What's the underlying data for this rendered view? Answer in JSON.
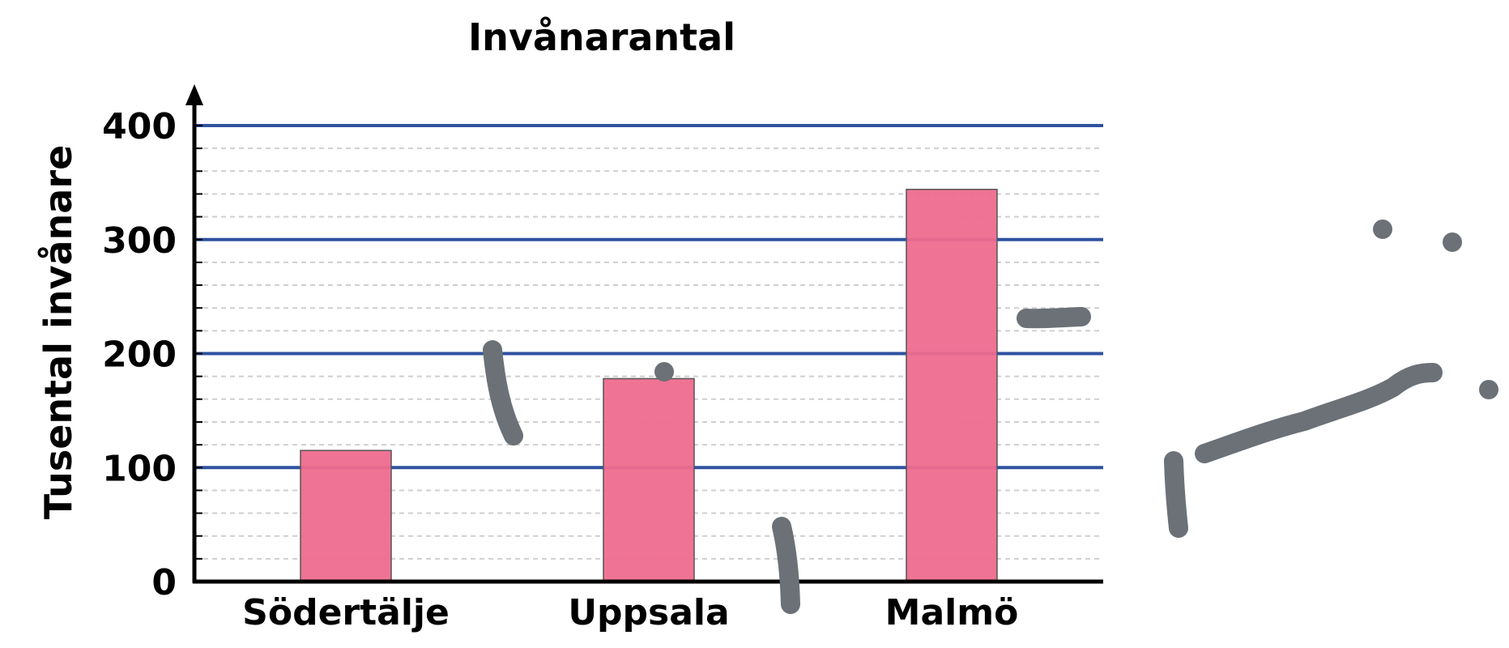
{
  "chart_data": {
    "type": "bar",
    "title": "Invånarantal",
    "ylabel": "Tusental invånare",
    "xlabel": "",
    "categories": [
      "Södertälje",
      "Uppsala",
      "Malmö"
    ],
    "values": [
      115,
      178,
      344
    ],
    "ylim": [
      0,
      400
    ],
    "yticks": [
      "0",
      "100",
      "200",
      "300",
      "400"
    ],
    "major_grid_step": 100,
    "minor_grid_step": 20,
    "grid": true,
    "colors": {
      "bar": "#ee6b8f",
      "bar_edge": "#555555",
      "major_grid": "#2f52a0",
      "minor_grid": "#cfcfcf",
      "axis": "#000000",
      "scribble": "#6b7176"
    }
  }
}
